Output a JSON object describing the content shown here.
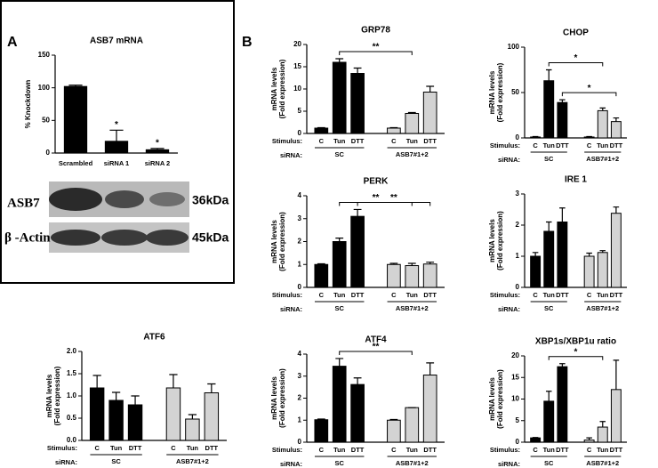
{
  "panel_labels": [
    "A",
    "B"
  ],
  "blot": {
    "bands": [
      {
        "name": "ASB7",
        "size": "36kDa"
      },
      {
        "name": "β -Actin",
        "size": "45kDa"
      }
    ]
  },
  "chart_data": [
    {
      "type": "bar",
      "title": "ASB7 mRNA",
      "ylabel": [
        "% Knockdown"
      ],
      "categories": [
        "Scrambled",
        "siRNA 1",
        "siRNA 2"
      ],
      "values": [
        102,
        18,
        5
      ],
      "errors": [
        2,
        17,
        2
      ],
      "colors": [
        "#000000",
        "#000000",
        "#000000"
      ],
      "ylim": [
        0,
        150
      ],
      "yticks": [
        0,
        50,
        100,
        150
      ],
      "annotations": [
        {
          "text": "*",
          "index": 1
        },
        {
          "text": "*",
          "index": 2
        }
      ]
    },
    {
      "type": "bar",
      "title": "GRP78",
      "ylabel": [
        "mRNA levels",
        "(Fold expression)"
      ],
      "stimulus_label": "Stimulus:",
      "sirna_label": "siRNA:",
      "groups": [
        "SC",
        "ASB7#1+2"
      ],
      "categories": [
        "C",
        "Tun",
        "DTT",
        "C",
        "Tun",
        "DTT"
      ],
      "values": [
        1.2,
        16,
        13.5,
        1.2,
        4.5,
        9.3
      ],
      "errors": [
        0.1,
        0.8,
        1.2,
        0.1,
        0.2,
        1.3
      ],
      "colors": [
        "#000000",
        "#000000",
        "#000000",
        "#d3d3d3",
        "#d3d3d3",
        "#d3d3d3"
      ],
      "ylim": [
        0,
        20
      ],
      "yticks": [
        0,
        5,
        10,
        15,
        20
      ],
      "significance": [
        {
          "text": "**",
          "from": 1,
          "to": 4
        }
      ]
    },
    {
      "type": "bar",
      "title": "CHOP",
      "ylabel": [
        "mRNA levels",
        "(Fold expression)"
      ],
      "stimulus_label": "Stimulus:",
      "sirna_label": "siRNA:",
      "groups": [
        "SC",
        "ASB7#1+2"
      ],
      "categories": [
        "C",
        "Tun",
        "DTT",
        "C",
        "Tun",
        "DTT"
      ],
      "values": [
        1,
        63,
        39,
        1,
        30,
        18
      ],
      "errors": [
        0.5,
        12,
        3,
        0.5,
        3,
        4
      ],
      "colors": [
        "#000000",
        "#000000",
        "#000000",
        "#d3d3d3",
        "#d3d3d3",
        "#d3d3d3"
      ],
      "ylim": [
        0,
        100
      ],
      "yticks": [
        0,
        50,
        100
      ],
      "significance": [
        {
          "text": "*",
          "from": 1,
          "to": 4
        },
        {
          "text": "*",
          "from": 2,
          "to": 5
        }
      ]
    },
    {
      "type": "bar",
      "title": "PERK",
      "ylabel": [
        "mRNA levels",
        "(Fold expression)"
      ],
      "stimulus_label": "Stimulus:",
      "sirna_label": "siRNA:",
      "groups": [
        "SC",
        "ASB7#1+2"
      ],
      "categories": [
        "C",
        "Tun",
        "DTT",
        "C",
        "Tun",
        "DTT"
      ],
      "values": [
        1,
        2,
        3.1,
        1,
        0.95,
        1.02
      ],
      "errors": [
        0.03,
        0.15,
        0.3,
        0.05,
        0.1,
        0.08
      ],
      "colors": [
        "#000000",
        "#000000",
        "#000000",
        "#d3d3d3",
        "#d3d3d3",
        "#d3d3d3"
      ],
      "ylim": [
        0,
        4
      ],
      "yticks": [
        0,
        1,
        2,
        3,
        4
      ],
      "significance": [
        {
          "text": "**",
          "from": 1,
          "to": 4
        },
        {
          "text": "**",
          "from": 2,
          "to": 5
        }
      ]
    },
    {
      "type": "bar",
      "title": "IRE 1",
      "ylabel": [
        "mRNA levels",
        "(Fold expression)"
      ],
      "stimulus_label": "Stimulus:",
      "sirna_label": "siRNA:",
      "groups": [
        "SC",
        "ASB7#1+2"
      ],
      "categories": [
        "C",
        "Tun",
        "DTT",
        "C",
        "Tun",
        "DTT"
      ],
      "values": [
        1,
        1.8,
        2.1,
        1,
        1.12,
        2.38
      ],
      "errors": [
        0.12,
        0.3,
        0.45,
        0.1,
        0.06,
        0.2
      ],
      "colors": [
        "#000000",
        "#000000",
        "#000000",
        "#d3d3d3",
        "#d3d3d3",
        "#d3d3d3"
      ],
      "ylim": [
        0,
        3
      ],
      "yticks": [
        0,
        1,
        2,
        3
      ]
    },
    {
      "type": "bar",
      "title": "ATF6",
      "ylabel": [
        "mRNA levels",
        "(Fold expression)"
      ],
      "stimulus_label": "Stimulus:",
      "sirna_label": "siRNA:",
      "groups": [
        "SC",
        "ASB7#1+2"
      ],
      "categories": [
        "C",
        "Tun",
        "DTT",
        "C",
        "Tun",
        "DTT"
      ],
      "values": [
        1.18,
        0.9,
        0.8,
        1.18,
        0.48,
        1.07
      ],
      "errors": [
        0.28,
        0.18,
        0.2,
        0.3,
        0.1,
        0.2
      ],
      "colors": [
        "#000000",
        "#000000",
        "#000000",
        "#d3d3d3",
        "#d3d3d3",
        "#d3d3d3"
      ],
      "ylim": [
        0,
        2
      ],
      "yticks": [
        {
          "value": 0,
          "label": "0.0"
        },
        {
          "value": 0.5,
          "label": "0.5"
        },
        {
          "value": 1,
          "label": "1.0"
        },
        {
          "value": 1.5,
          "label": "1.5"
        },
        {
          "value": 2,
          "label": "2.0"
        }
      ]
    },
    {
      "type": "bar",
      "title": "ATF4",
      "ylabel": [
        "mRNA levels",
        "(Fold expression)"
      ],
      "stimulus_label": "Stimulus:",
      "sirna_label": "siRNA:",
      "groups": [
        "SC",
        "ASB7#1+2"
      ],
      "categories": [
        "C",
        "Tun",
        "DTT",
        "C",
        "Tun",
        "DTT"
      ],
      "values": [
        1.02,
        3.45,
        2.62,
        1,
        1.57,
        3.05
      ],
      "errors": [
        0.03,
        0.35,
        0.3,
        0.03,
        0,
        0.55
      ],
      "colors": [
        "#000000",
        "#000000",
        "#000000",
        "#d3d3d3",
        "#d3d3d3",
        "#d3d3d3"
      ],
      "ylim": [
        0,
        4
      ],
      "yticks": [
        0,
        1,
        2,
        3,
        4
      ],
      "significance": [
        {
          "text": "**",
          "from": 1,
          "to": 4
        }
      ]
    },
    {
      "type": "bar",
      "title": "XBP1s/XBP1u ratio",
      "ylabel": [
        "mRNA levels",
        "(Fold expression)"
      ],
      "stimulus_label": "Stimulus:",
      "sirna_label": "siRNA:",
      "groups": [
        "SC",
        "ASB7#1+2"
      ],
      "categories": [
        "C",
        "Tun",
        "DTT",
        "C",
        "Tun",
        "DTT"
      ],
      "values": [
        1,
        9.5,
        17.5,
        0.5,
        3.5,
        12.2
      ],
      "errors": [
        0.1,
        2.3,
        0.7,
        0.5,
        1.3,
        6.8
      ],
      "colors": [
        "#000000",
        "#000000",
        "#000000",
        "#d3d3d3",
        "#d3d3d3",
        "#d3d3d3"
      ],
      "ylim": [
        0,
        20
      ],
      "yticks": [
        0,
        5,
        10,
        15,
        20
      ],
      "significance": [
        {
          "text": "*",
          "from": 1,
          "to": 4
        }
      ]
    }
  ]
}
